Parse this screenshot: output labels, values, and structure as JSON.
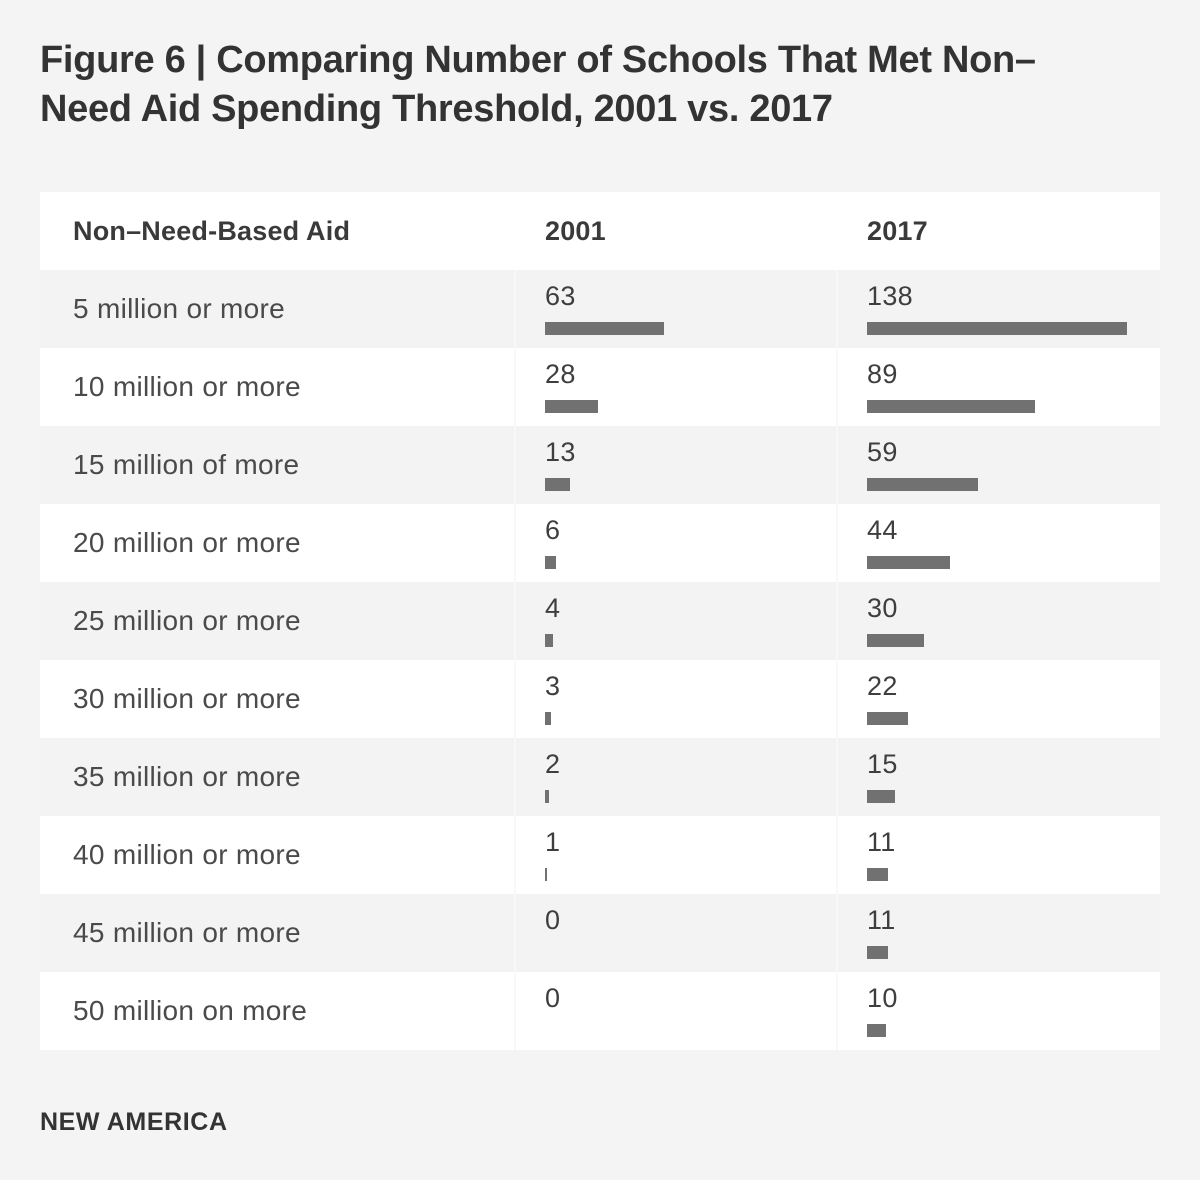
{
  "page": {
    "background": "#f4f4f4",
    "row_alt_color": "#f3f3f3",
    "row_white_color": "#ffffff",
    "divider_color": "#f8f8f8"
  },
  "title": {
    "line1": "Figure 6 | Comparing Number of Schools That Met Non–",
    "line2": "Need Aid Spending Threshold, 2001 vs. 2017"
  },
  "table": {
    "columns": [
      "Non–Need-Based Aid",
      "2001",
      "2017"
    ],
    "rows": [
      {
        "label": "5 million or more",
        "v2001": 63,
        "v2017": 138
      },
      {
        "label": "10 million or more",
        "v2001": 28,
        "v2017": 89
      },
      {
        "label": "15 million of more",
        "v2001": 13,
        "v2017": 59
      },
      {
        "label": "20 million or more",
        "v2001": 6,
        "v2017": 44
      },
      {
        "label": "25 million or more",
        "v2001": 4,
        "v2017": 30
      },
      {
        "label": "30 million or more",
        "v2001": 3,
        "v2017": 22
      },
      {
        "label": "35 million or more",
        "v2001": 2,
        "v2017": 15
      },
      {
        "label": "40 million or more",
        "v2001": 1,
        "v2017": 11
      },
      {
        "label": "45 million or more",
        "v2001": 0,
        "v2017": 11
      },
      {
        "label": "50 million on more",
        "v2001": 0,
        "v2017": 10
      }
    ]
  },
  "footer": {
    "brand": "NEW AMERICA"
  },
  "chart_data": {
    "type": "bar",
    "title": "Figure 6 | Comparing Number of Schools That Met Non–Need Aid Spending Threshold, 2001 vs. 2017",
    "categories": [
      "5 million or more",
      "10 million or more",
      "15 million of more",
      "20 million or more",
      "25 million or more",
      "30 million or more",
      "35 million or more",
      "40 million or more",
      "45 million or more",
      "50 million on more"
    ],
    "series": [
      {
        "name": "2001",
        "values": [
          63,
          28,
          13,
          6,
          4,
          3,
          2,
          1,
          0,
          0
        ]
      },
      {
        "name": "2017",
        "values": [
          138,
          89,
          59,
          44,
          30,
          22,
          15,
          11,
          11,
          10
        ]
      }
    ],
    "xlabel": "Non–Need-Based Aid",
    "ylabel": "Number of Schools",
    "bar_color": "#717171",
    "value_labels_shown": true,
    "legend_position": "column-headers",
    "grid": false,
    "scale_max_value": 138
  }
}
